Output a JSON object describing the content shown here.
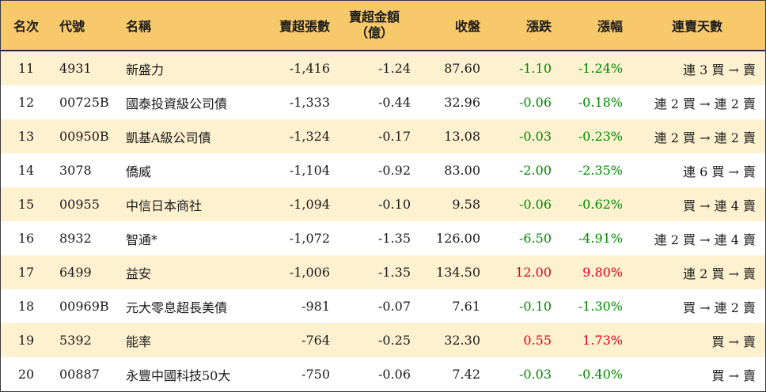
{
  "table": {
    "headers": {
      "rank": "名次",
      "code": "代號",
      "name": "名稱",
      "net_sell_lots": "賣超張數",
      "net_sell_amount_line1": "賣超金額",
      "net_sell_amount_line2": "（億）",
      "close": "收盤",
      "change": "漲跌",
      "change_pct": "漲幅",
      "streak": "連賣天數"
    },
    "rows": [
      {
        "rank": "11",
        "code": "4931",
        "name": "新盛力",
        "lots": "-1,416",
        "amount": "-1.24",
        "close": "87.60",
        "change": "-1.10",
        "pct": "-1.24%",
        "streak": "連 3 買 → 賣",
        "dir": "down"
      },
      {
        "rank": "12",
        "code": "00725B",
        "name": "國泰投資級公司債",
        "lots": "-1,333",
        "amount": "-0.44",
        "close": "32.96",
        "change": "-0.06",
        "pct": "-0.18%",
        "streak": "連 2 買 → 連 2 賣",
        "dir": "down"
      },
      {
        "rank": "13",
        "code": "00950B",
        "name": "凱基A級公司債",
        "lots": "-1,324",
        "amount": "-0.17",
        "close": "13.08",
        "change": "-0.03",
        "pct": "-0.23%",
        "streak": "連 2 買 → 連 2 賣",
        "dir": "down"
      },
      {
        "rank": "14",
        "code": "3078",
        "name": "僑威",
        "lots": "-1,104",
        "amount": "-0.92",
        "close": "83.00",
        "change": "-2.00",
        "pct": "-2.35%",
        "streak": "連 6 買 → 賣",
        "dir": "down"
      },
      {
        "rank": "15",
        "code": "00955",
        "name": "中信日本商社",
        "lots": "-1,094",
        "amount": "-0.10",
        "close": "9.58",
        "change": "-0.06",
        "pct": "-0.62%",
        "streak": "買 → 連 4 賣",
        "dir": "down"
      },
      {
        "rank": "16",
        "code": "8932",
        "name": "智通*",
        "lots": "-1,072",
        "amount": "-1.35",
        "close": "126.00",
        "change": "-6.50",
        "pct": "-4.91%",
        "streak": "連 2 買 → 連 4 賣",
        "dir": "down"
      },
      {
        "rank": "17",
        "code": "6499",
        "name": "益安",
        "lots": "-1,006",
        "amount": "-1.35",
        "close": "134.50",
        "change": "12.00",
        "pct": "9.80%",
        "streak": "連 2 買 → 賣",
        "dir": "up"
      },
      {
        "rank": "18",
        "code": "00969B",
        "name": "元大零息超長美債",
        "lots": "-981",
        "amount": "-0.07",
        "close": "7.61",
        "change": "-0.10",
        "pct": "-1.30%",
        "streak": "買 → 連 2 賣",
        "dir": "down"
      },
      {
        "rank": "19",
        "code": "5392",
        "name": "能率",
        "lots": "-764",
        "amount": "-0.25",
        "close": "32.30",
        "change": "0.55",
        "pct": "1.73%",
        "streak": "買 → 賣",
        "dir": "up"
      },
      {
        "rank": "20",
        "code": "00887",
        "name": "永豐中國科技50大",
        "lots": "-750",
        "amount": "-0.06",
        "close": "7.42",
        "change": "-0.03",
        "pct": "-0.40%",
        "streak": "買 → 賣",
        "dir": "down"
      }
    ]
  },
  "colors": {
    "header_bg": "#f7c96b",
    "stripe_bg": "#fdf1d0",
    "up": "#e0001b",
    "down": "#008a00"
  }
}
